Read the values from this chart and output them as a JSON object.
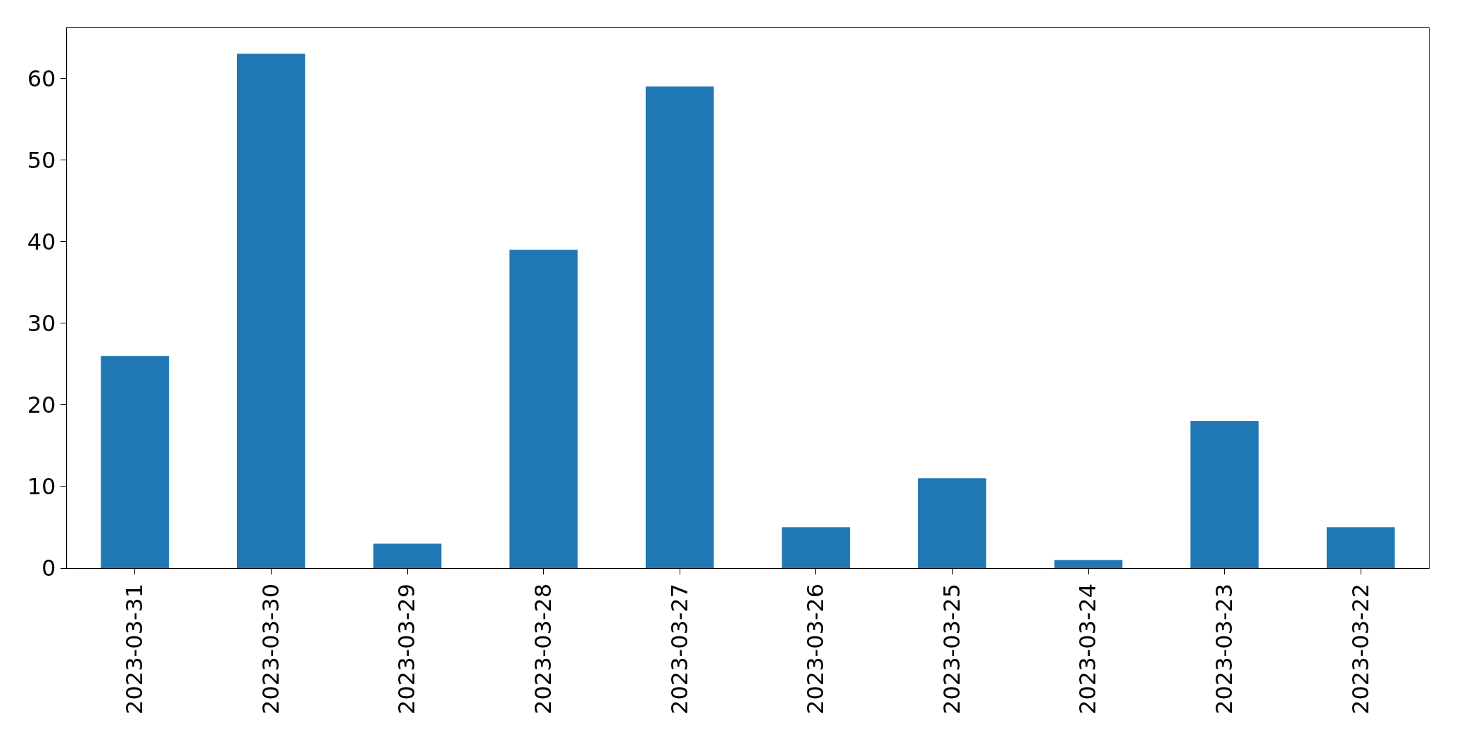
{
  "chart_data": {
    "type": "bar",
    "categories": [
      "2023-03-31",
      "2023-03-30",
      "2023-03-29",
      "2023-03-28",
      "2023-03-27",
      "2023-03-26",
      "2023-03-25",
      "2023-03-24",
      "2023-03-23",
      "2023-03-22"
    ],
    "values": [
      26,
      63,
      3,
      39,
      59,
      5,
      11,
      1,
      18,
      5
    ],
    "color": "#1f77b4",
    "ylim": [
      0,
      66.15
    ],
    "yticks": [
      0,
      10,
      20,
      30,
      40,
      50,
      60
    ],
    "grid": false
  }
}
